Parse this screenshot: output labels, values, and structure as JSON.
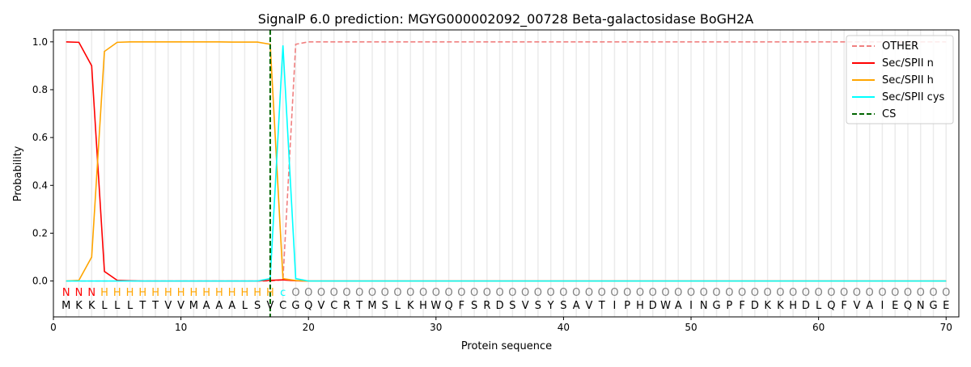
{
  "chart_data": {
    "type": "line",
    "title": "SignalP 6.0 prediction: MGYG000002092_00728 Beta-galactosidase BoGH2A",
    "xlabel": "Protein sequence",
    "ylabel": "Probability",
    "xlim": [
      0,
      71
    ],
    "ylim": [
      -0.15,
      1.05
    ],
    "xticks": [
      0,
      10,
      20,
      30,
      40,
      50,
      60,
      70
    ],
    "yticks": [
      "0.0",
      "0.2",
      "0.4",
      "0.6",
      "0.8",
      "1.0"
    ],
    "grid": "vertical lines at each residue",
    "legend_placement": "top-right",
    "sequence": [
      "M",
      "K",
      "K",
      "L",
      "L",
      "L",
      "T",
      "T",
      "V",
      "V",
      "M",
      "A",
      "A",
      "A",
      "L",
      "S",
      "V",
      "C",
      "G",
      "Q",
      "V",
      "C",
      "R",
      "T",
      "M",
      "S",
      "L",
      "K",
      "H",
      "W",
      "Q",
      "F",
      "S",
      "R",
      "D",
      "S",
      "V",
      "S",
      "Y",
      "S",
      "A",
      "V",
      "T",
      "I",
      "P",
      "H",
      "D",
      "W",
      "A",
      "I",
      "N",
      "G",
      "P",
      "F",
      "D",
      "K",
      "K",
      "H",
      "D",
      "L",
      "Q",
      "F",
      "V",
      "A",
      "I",
      "E",
      "Q",
      "N",
      "G",
      "E"
    ],
    "region_labels": [
      "N",
      "N",
      "N",
      "H",
      "H",
      "H",
      "H",
      "H",
      "H",
      "H",
      "H",
      "H",
      "H",
      "H",
      "H",
      "H",
      "H",
      "c",
      "O",
      "O",
      "O",
      "O",
      "O",
      "O",
      "O",
      "O",
      "O",
      "O",
      "O",
      "O",
      "O",
      "O",
      "O",
      "O",
      "O",
      "O",
      "O",
      "O",
      "O",
      "O",
      "O",
      "O",
      "O",
      "O",
      "O",
      "O",
      "O",
      "O",
      "O",
      "O",
      "O",
      "O",
      "O",
      "O",
      "O",
      "O",
      "O",
      "O",
      "O",
      "O",
      "O",
      "O",
      "O",
      "O",
      "O",
      "O",
      "O",
      "O",
      "O",
      "O"
    ],
    "region_colors": {
      "N": "#ff0000",
      "H": "#ffa500",
      "c": "#00ffff",
      "O": "#808080"
    },
    "cs_position": 17,
    "series": [
      {
        "name": "OTHER",
        "color": "#f08080",
        "dash": true,
        "sparse": {
          "18": 0.005,
          "19": 0.99
        },
        "default_before": 0,
        "default_after": 1.0,
        "switch": 19
      },
      {
        "name": "Sec/SPII n",
        "color": "#ff0000",
        "values_head": [
          1.0,
          0.998,
          0.9,
          0.04,
          0.003,
          0.001,
          0,
          0,
          0,
          0,
          0,
          0,
          0,
          0,
          0,
          0,
          0.003,
          0.005,
          0.001
        ]
      },
      {
        "name": "Sec/SPII h",
        "color": "#ffa500",
        "values_head": [
          0,
          0.003,
          0.1,
          0.96,
          0.998,
          1.0,
          1.0,
          1.0,
          1.0,
          1.0,
          1.0,
          1.0,
          1.0,
          0.999,
          0.999,
          0.999,
          0.99,
          0.01,
          0.002
        ]
      },
      {
        "name": "Sec/SPII cys",
        "color": "#00ffff",
        "values_head": [
          0,
          0,
          0,
          0,
          0,
          0,
          0,
          0,
          0,
          0,
          0,
          0,
          0,
          0,
          0,
          0,
          0.01,
          0.985,
          0.01
        ]
      },
      {
        "name": "CS",
        "color": "#006400",
        "dash": true
      }
    ]
  }
}
